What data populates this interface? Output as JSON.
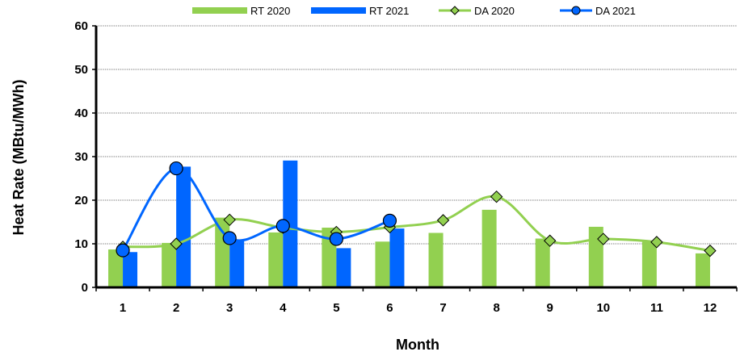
{
  "chart_data": {
    "type": "bar",
    "title": "",
    "xlabel": "Month",
    "ylabel": "Heat Rate (MBtu/MWh)",
    "ylim": [
      0,
      60
    ],
    "yticks": [
      0,
      10,
      20,
      30,
      40,
      50,
      60
    ],
    "grid": true,
    "legend": "top",
    "categories": [
      "1",
      "2",
      "3",
      "4",
      "5",
      "6",
      "7",
      "8",
      "9",
      "10",
      "11",
      "12"
    ],
    "series": [
      {
        "name": "RT 2020",
        "kind": "bar",
        "color": "#92d050",
        "values": [
          8.7,
          10.2,
          16.0,
          12.6,
          13.7,
          10.5,
          12.5,
          17.8,
          11.2,
          13.9,
          10.6,
          7.8
        ]
      },
      {
        "name": "RT 2021",
        "kind": "bar",
        "color": "#0066ff",
        "values": [
          8.1,
          27.7,
          11.0,
          29.1,
          9.0,
          13.5,
          null,
          null,
          null,
          null,
          null,
          null
        ]
      },
      {
        "name": "DA 2020",
        "kind": "line",
        "marker": "diamond",
        "color": "#92d050",
        "values": [
          9.3,
          10.0,
          15.5,
          13.7,
          12.7,
          13.8,
          15.4,
          20.8,
          10.7,
          11.1,
          10.4,
          8.4
        ]
      },
      {
        "name": "DA 2021",
        "kind": "line",
        "marker": "circle",
        "color": "#0066ff",
        "values": [
          8.5,
          27.3,
          11.3,
          14.1,
          11.1,
          15.3,
          null,
          null,
          null,
          null,
          null,
          null
        ]
      }
    ]
  }
}
